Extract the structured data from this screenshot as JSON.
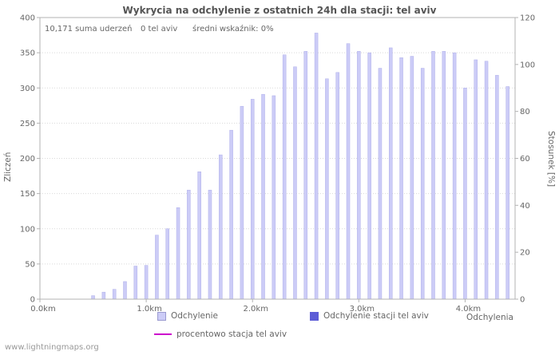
{
  "annotations": {
    "sum": "10,171 suma uderzeń",
    "station": "0 tel aviv",
    "ratio": "średni wskaźnik: 0%"
  },
  "axes": {
    "ylabel_left": "Zliczeń",
    "ylabel_right": "Stosunek [%]",
    "xlabel": "Odchylenia"
  },
  "legend": {
    "deviation": "Odchylenie",
    "station_deviation": "Odchylenie stacji tel aviv",
    "percent": "procentowo stacja tel aviv"
  },
  "watermark": "www.lightningmaps.org",
  "chart_data": {
    "type": "bar",
    "title": "Wykrycia na odchylenie z ostatnich 24h dla stacji: tel aviv",
    "xlabel": "Odchylenia",
    "ylabel_left": "Zliczeń",
    "ylabel_right": "Stosunek [%]",
    "x_unit": "km",
    "x_km": [
      0.0,
      0.1,
      0.2,
      0.3,
      0.4,
      0.5,
      0.6,
      0.7,
      0.8,
      0.9,
      1.0,
      1.1,
      1.2,
      1.3,
      1.4,
      1.5,
      1.6,
      1.7,
      1.8,
      1.9,
      2.0,
      2.1,
      2.2,
      2.3,
      2.4,
      2.5,
      2.6,
      2.7,
      2.8,
      2.9,
      3.0,
      3.1,
      3.2,
      3.3,
      3.4,
      3.5,
      3.6,
      3.7,
      3.8,
      3.9,
      4.0,
      4.1,
      4.2,
      4.3,
      4.4
    ],
    "values": [
      0,
      0,
      0,
      0,
      0,
      5,
      10,
      14,
      25,
      47,
      48,
      91,
      100,
      130,
      155,
      181,
      155,
      205,
      240,
      274,
      284,
      291,
      289,
      347,
      330,
      352,
      378,
      313,
      322,
      363,
      352,
      350,
      328,
      357,
      343,
      345,
      328,
      352,
      352,
      350,
      300,
      340,
      338,
      318,
      302
    ],
    "station_values_constant": 0,
    "percent_values_constant": 0,
    "xlim": [
      0,
      4.47
    ],
    "ylim_left": [
      0,
      400
    ],
    "ylim_right": [
      0,
      120
    ],
    "y_left_ticks": [
      0,
      50,
      100,
      150,
      200,
      250,
      300,
      350,
      400
    ],
    "y_right_ticks": [
      0,
      20,
      40,
      60,
      80,
      100,
      120
    ],
    "x_ticks": [
      {
        "pos": 0.0,
        "label": "0.0km"
      },
      {
        "pos": 1.0,
        "label": "1.0km"
      },
      {
        "pos": 2.0,
        "label": "2.0km"
      },
      {
        "pos": 3.0,
        "label": "3.0km"
      },
      {
        "pos": 4.0,
        "label": "4.0km"
      }
    ],
    "grid": true,
    "legend_position": "bottom",
    "colors": {
      "bar": "#ccccf7",
      "bar_edge": "#b0b0ea",
      "station": "#5c5cd6",
      "percent": "#cc00cc",
      "grid": "#d9d9d9",
      "axis": "#b3b3b3",
      "text": "#666666"
    }
  }
}
